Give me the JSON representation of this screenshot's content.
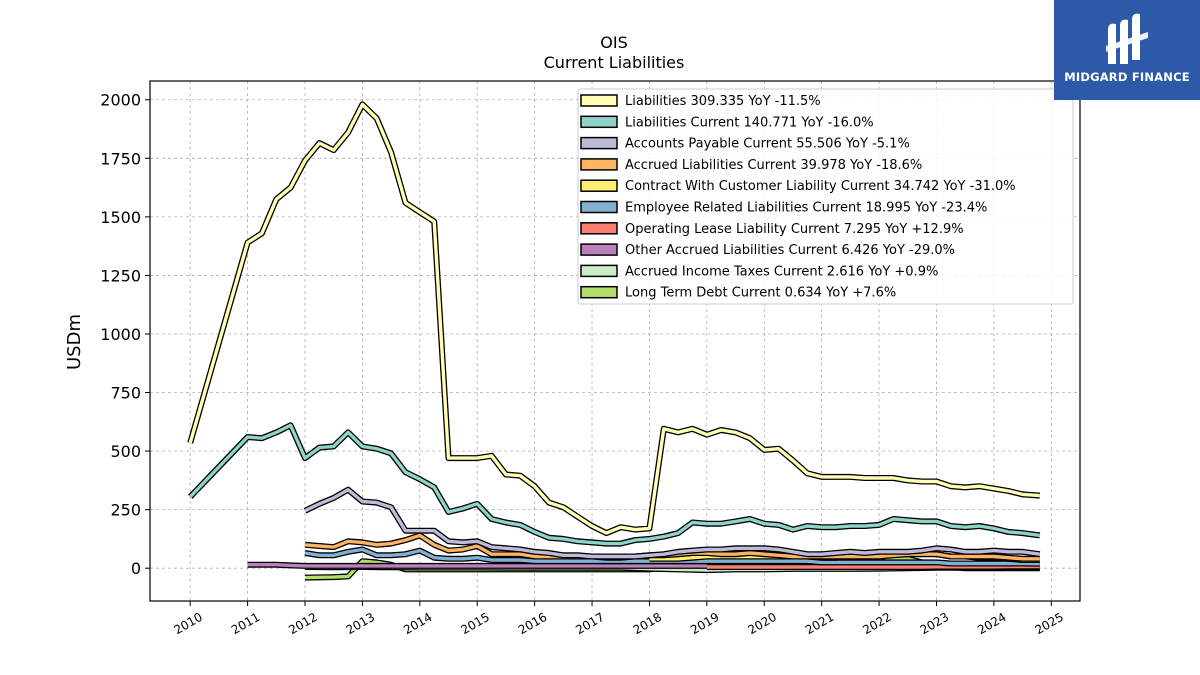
{
  "chart_data": {
    "type": "line",
    "title": "OIS",
    "subtitle": "Current  Liabilities",
    "xlabel": "",
    "ylabel": "USDm",
    "xlim": [
      2009.3,
      2025.5
    ],
    "ylim": [
      -140,
      2080
    ],
    "grid": true,
    "legend_position": "top-right",
    "x_ticks": [
      2010,
      2011,
      2012,
      2013,
      2014,
      2015,
      2016,
      2017,
      2018,
      2019,
      2020,
      2021,
      2022,
      2023,
      2024,
      2025
    ],
    "y_ticks": [
      0,
      250,
      500,
      750,
      1000,
      1250,
      1500,
      1750,
      2000
    ],
    "series": [
      {
        "name": "Liabilities",
        "legend": "Liabilities  309.335 YoY -11.5%",
        "color": "#ffffb3",
        "x": [
          2010.0,
          2011.0,
          2011.25,
          2011.5,
          2011.75,
          2012.0,
          2012.25,
          2012.5,
          2012.75,
          2013.0,
          2013.25,
          2013.5,
          2013.75,
          2014.0,
          2014.25,
          2014.5,
          2014.75,
          2015.0,
          2015.25,
          2015.5,
          2015.75,
          2016.0,
          2016.25,
          2016.5,
          2016.75,
          2017.0,
          2017.25,
          2017.5,
          2017.75,
          2018.0,
          2018.25,
          2018.5,
          2018.75,
          2019.0,
          2019.25,
          2019.5,
          2019.75,
          2020.0,
          2020.25,
          2020.5,
          2020.75,
          2021.0,
          2021.25,
          2021.5,
          2021.75,
          2022.0,
          2022.25,
          2022.5,
          2022.75,
          2023.0,
          2023.25,
          2023.5,
          2023.75,
          2024.0,
          2024.25,
          2024.5,
          2024.8
        ],
        "y": [
          535,
          1390,
          1430,
          1575,
          1625,
          1740,
          1815,
          1785,
          1860,
          1980,
          1920,
          1775,
          1560,
          1520,
          1480,
          470,
          470,
          470,
          480,
          400,
          395,
          350,
          280,
          260,
          220,
          180,
          150,
          175,
          165,
          170,
          595,
          580,
          595,
          570,
          590,
          580,
          555,
          505,
          510,
          460,
          405,
          390,
          390,
          390,
          385,
          385,
          385,
          375,
          370,
          370,
          350,
          345,
          350,
          340,
          330,
          315,
          310
        ]
      },
      {
        "name": "Liabilities Current",
        "legend": "Liabilities Current  140.771 YoY -16.0%",
        "color": "#8dd3c7",
        "x": [
          2010.0,
          2011.0,
          2011.25,
          2011.5,
          2011.75,
          2012.0,
          2012.25,
          2012.5,
          2012.75,
          2013.0,
          2013.25,
          2013.5,
          2013.75,
          2014.0,
          2014.25,
          2014.5,
          2014.75,
          2015.0,
          2015.25,
          2015.5,
          2015.75,
          2016.0,
          2016.25,
          2016.5,
          2016.75,
          2017.0,
          2017.25,
          2017.5,
          2017.75,
          2018.0,
          2018.25,
          2018.5,
          2018.75,
          2019.0,
          2019.25,
          2019.5,
          2019.75,
          2020.0,
          2020.25,
          2020.5,
          2020.75,
          2021.0,
          2021.25,
          2021.5,
          2021.75,
          2022.0,
          2022.25,
          2022.5,
          2022.75,
          2023.0,
          2023.25,
          2023.5,
          2023.75,
          2024.0,
          2024.25,
          2024.5,
          2024.8
        ],
        "y": [
          305,
          560,
          555,
          580,
          610,
          470,
          515,
          520,
          580,
          520,
          510,
          490,
          410,
          380,
          345,
          240,
          255,
          275,
          210,
          195,
          185,
          155,
          130,
          125,
          115,
          110,
          105,
          105,
          120,
          125,
          135,
          150,
          195,
          190,
          190,
          200,
          210,
          190,
          185,
          165,
          180,
          175,
          175,
          180,
          180,
          185,
          210,
          205,
          200,
          200,
          180,
          175,
          180,
          170,
          155,
          150,
          140
        ]
      },
      {
        "name": "Accounts Payable Current",
        "legend": "Accounts Payable Current  55.506 YoY -5.1%",
        "color": "#bebada",
        "x": [
          2012.0,
          2012.25,
          2012.5,
          2012.75,
          2013.0,
          2013.25,
          2013.5,
          2013.75,
          2014.0,
          2014.25,
          2014.5,
          2014.75,
          2015.0,
          2015.25,
          2015.5,
          2015.75,
          2016.0,
          2016.25,
          2016.5,
          2016.75,
          2017.0,
          2017.25,
          2017.5,
          2017.75,
          2018.0,
          2018.25,
          2018.5,
          2018.75,
          2019.0,
          2019.25,
          2019.5,
          2019.75,
          2020.0,
          2020.25,
          2020.5,
          2020.75,
          2021.0,
          2021.25,
          2021.5,
          2021.75,
          2022.0,
          2022.25,
          2022.5,
          2022.75,
          2023.0,
          2023.25,
          2023.5,
          2023.75,
          2024.0,
          2024.25,
          2024.5,
          2024.8
        ],
        "y": [
          245,
          275,
          300,
          335,
          285,
          280,
          260,
          160,
          160,
          160,
          115,
          110,
          115,
          90,
          85,
          80,
          70,
          65,
          55,
          55,
          50,
          50,
          50,
          50,
          55,
          60,
          70,
          75,
          80,
          80,
          85,
          85,
          85,
          80,
          70,
          60,
          60,
          65,
          70,
          65,
          70,
          70,
          70,
          75,
          85,
          80,
          70,
          70,
          75,
          70,
          70,
          60
        ]
      },
      {
        "name": "Accrued Liabilities Current",
        "legend": "Accrued Liabilities Current  39.978 YoY -18.6%",
        "color": "#fdb462",
        "x": [
          2012.0,
          2012.25,
          2012.5,
          2012.75,
          2013.0,
          2013.25,
          2013.5,
          2013.75,
          2014.0,
          2014.25,
          2014.5,
          2014.75,
          2015.0,
          2015.25,
          2015.5,
          2015.75,
          2016.0,
          2016.25,
          2016.5,
          2016.75,
          2017.0,
          2017.25,
          2017.5,
          2017.75,
          2018.0,
          2018.25,
          2018.5,
          2018.75,
          2019.0,
          2019.25,
          2019.5,
          2019.75,
          2020.0,
          2020.25,
          2020.5,
          2020.75,
          2021.0,
          2021.25,
          2021.5,
          2021.75,
          2022.0,
          2022.25,
          2022.5,
          2022.75,
          2023.0,
          2023.25,
          2023.5,
          2023.75,
          2024.0,
          2024.25,
          2024.5,
          2024.8
        ],
        "y": [
          100,
          95,
          90,
          115,
          110,
          100,
          105,
          120,
          140,
          100,
          75,
          80,
          95,
          60,
          60,
          60,
          50,
          50,
          50,
          50,
          50,
          45,
          45,
          50,
          55,
          55,
          60,
          65,
          65,
          60,
          60,
          65,
          60,
          55,
          50,
          50,
          50,
          50,
          50,
          50,
          50,
          55,
          60,
          60,
          60,
          50,
          50,
          50,
          50,
          45,
          40,
          40
        ]
      },
      {
        "name": "Contract With Customer Liability Current",
        "legend": "Contract With Customer Liability Current  34.742 YoY -31.0%",
        "color": "#ffed6f",
        "x": [
          2018.0,
          2018.25,
          2018.5,
          2018.75,
          2019.0,
          2019.25,
          2019.5,
          2019.75,
          2020.0,
          2020.25,
          2020.5,
          2020.75,
          2021.0,
          2021.25,
          2021.5,
          2021.75,
          2022.0,
          2022.25,
          2022.5,
          2022.75,
          2023.0,
          2023.25,
          2023.5,
          2023.75,
          2024.0,
          2024.25,
          2024.5,
          2024.8
        ],
        "y": [
          40,
          40,
          40,
          45,
          50,
          50,
          50,
          50,
          50,
          50,
          50,
          50,
          45,
          45,
          50,
          50,
          55,
          60,
          60,
          65,
          60,
          50,
          50,
          45,
          45,
          40,
          35,
          35
        ]
      },
      {
        "name": "Employee Related Liabilities Current",
        "legend": "Employee Related Liabilities Current  18.995 YoY -23.4%",
        "color": "#80b1d3",
        "x": [
          2012.0,
          2012.25,
          2012.5,
          2012.75,
          2013.0,
          2013.25,
          2013.5,
          2013.75,
          2014.0,
          2014.25,
          2014.5,
          2014.75,
          2015.0,
          2015.25,
          2015.5,
          2015.75,
          2016.0,
          2016.25,
          2016.5,
          2016.75,
          2017.0,
          2017.25,
          2017.5,
          2017.75,
          2018.0,
          2018.25,
          2018.5,
          2018.75,
          2019.0,
          2019.25,
          2019.5,
          2019.75,
          2020.0,
          2020.25,
          2020.5,
          2020.75,
          2021.0,
          2021.25,
          2021.5,
          2021.75,
          2022.0,
          2022.25,
          2022.5,
          2022.75,
          2023.0,
          2023.25,
          2023.5,
          2023.75,
          2024.0,
          2024.25,
          2024.5,
          2024.8
        ],
        "y": [
          65,
          55,
          55,
          70,
          80,
          55,
          55,
          60,
          75,
          45,
          40,
          40,
          45,
          35,
          35,
          35,
          30,
          30,
          30,
          30,
          30,
          30,
          30,
          30,
          30,
          30,
          30,
          30,
          30,
          30,
          30,
          30,
          30,
          30,
          30,
          30,
          25,
          25,
          25,
          25,
          25,
          25,
          25,
          25,
          25,
          20,
          20,
          20,
          20,
          20,
          20,
          19
        ]
      },
      {
        "name": "Operating Lease Liability Current",
        "legend": "Operating Lease Liability Current  7.295 YoY +12.9%",
        "color": "#fb8072",
        "x": [
          2019.0,
          2019.25,
          2019.5,
          2019.75,
          2020.0,
          2020.25,
          2020.5,
          2020.75,
          2021.0,
          2021.25,
          2021.5,
          2021.75,
          2022.0,
          2022.25,
          2022.5,
          2022.75,
          2023.0,
          2023.25,
          2023.5,
          2023.75,
          2024.0,
          2024.25,
          2024.5,
          2024.8
        ],
        "y": [
          5,
          5,
          5,
          5,
          5,
          5,
          5,
          5,
          5,
          5,
          5,
          5,
          5,
          5,
          5,
          5,
          6,
          6,
          6,
          6,
          6,
          7,
          7,
          7
        ]
      },
      {
        "name": "Other Accrued Liabilities Current",
        "legend": "Other Accrued Liabilities Current  6.426 YoY -29.0%",
        "color": "#bc80bd",
        "x": [
          2011.0,
          2011.25,
          2011.5,
          2011.75,
          2012.0,
          2012.25,
          2012.5,
          2012.75,
          2013.0,
          2013.25,
          2013.5,
          2013.75,
          2014.0,
          2014.25,
          2014.5,
          2014.75,
          2015.0,
          2015.25,
          2015.5,
          2015.75,
          2016.0,
          2016.25,
          2016.5,
          2016.75,
          2017.0,
          2017.25,
          2017.5,
          2017.75,
          2018.0,
          2018.25,
          2018.5,
          2018.75,
          2019.0,
          2019.25,
          2019.5,
          2019.75,
          2020.0,
          2020.25,
          2020.5,
          2020.75,
          2021.0,
          2021.25,
          2021.5,
          2021.75,
          2022.0,
          2022.25,
          2022.5,
          2022.75,
          2023.0,
          2023.25,
          2023.5,
          2023.75,
          2024.0,
          2024.25,
          2024.5,
          2024.8
        ],
        "y": [
          15,
          15,
          15,
          12,
          10,
          10,
          10,
          10,
          10,
          10,
          10,
          10,
          10,
          10,
          10,
          10,
          10,
          10,
          10,
          10,
          10,
          10,
          10,
          10,
          10,
          10,
          10,
          10,
          10,
          10,
          10,
          10,
          10,
          10,
          10,
          10,
          10,
          10,
          10,
          10,
          10,
          10,
          10,
          10,
          10,
          10,
          10,
          10,
          10,
          10,
          10,
          9,
          9,
          8,
          7,
          6
        ]
      },
      {
        "name": "Accrued Income Taxes Current",
        "legend": "Accrued Income Taxes Current  2.616 YoY +0.9%",
        "color": "#ccebc5",
        "x": [
          2012.0,
          2012.5,
          2013.0,
          2013.5,
          2014.0,
          2014.5,
          2015.0,
          2015.5,
          2016.0,
          2016.5,
          2017.0,
          2017.5,
          2018.0,
          2018.5,
          2019.0,
          2019.5,
          2020.0,
          2020.5,
          2021.0,
          2021.5,
          2022.0,
          2022.5,
          2023.0,
          2023.5,
          2024.0,
          2024.5,
          2024.8
        ],
        "y": [
          5,
          4,
          5,
          4,
          3,
          3,
          3,
          2,
          2,
          2,
          2,
          2,
          -2,
          -5,
          -8,
          -5,
          -5,
          -3,
          -3,
          -3,
          -2,
          0,
          2,
          2,
          3,
          3,
          3
        ]
      },
      {
        "name": "Long Term Debt Current",
        "legend": "Long Term Debt Current  0.634 YoY +7.6%",
        "color": "#b3de69",
        "x": [
          2012.0,
          2012.5,
          2012.75,
          2013.0,
          2013.25,
          2013.5,
          2013.75,
          2014.0,
          2014.5,
          2015.0,
          2015.5,
          2016.0,
          2016.5,
          2017.0,
          2017.5,
          2018.0,
          2018.25,
          2018.5,
          2018.75,
          2019.0,
          2019.25,
          2019.5,
          2019.75,
          2020.0,
          2020.25,
          2020.5,
          2020.75,
          2021.0,
          2021.25,
          2021.5,
          2021.75,
          2022.0,
          2022.25,
          2022.5,
          2022.75,
          2023.0,
          2023.25,
          2023.5,
          2024.0,
          2024.5,
          2024.8
        ],
        "y": [
          -40,
          -38,
          -35,
          30,
          25,
          15,
          -5,
          -5,
          -5,
          -5,
          -5,
          -5,
          -5,
          -5,
          -5,
          -5,
          5,
          15,
          20,
          25,
          25,
          25,
          25,
          25,
          25,
          25,
          25,
          20,
          20,
          20,
          20,
          20,
          45,
          40,
          25,
          20,
          5,
          0,
          0,
          0,
          0
        ]
      }
    ]
  },
  "logo": {
    "text": "MIDGARD FINANCE"
  }
}
